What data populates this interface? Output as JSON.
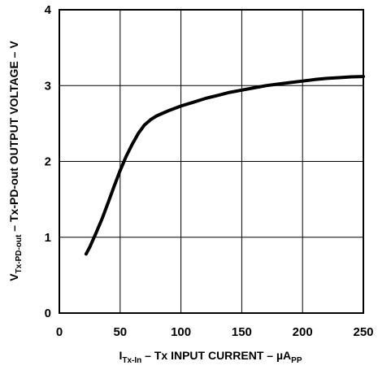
{
  "chart_data": {
    "type": "line",
    "x_label": {
      "main": "I",
      "sub": "Tx-In",
      "rest": " – Tx INPUT CURRENT – µA",
      "sub2": "PP"
    },
    "y_label": {
      "main": "V",
      "sub": "Tx-PD-out",
      "rest": " – Tx-PD-out OUTPUT VOLTAGE – V"
    },
    "xlim": [
      0,
      250
    ],
    "ylim": [
      0,
      4
    ],
    "x_ticks": [
      "0",
      "50",
      "100",
      "150",
      "200",
      "250"
    ],
    "y_ticks": [
      "0",
      "1",
      "2",
      "3",
      "4"
    ],
    "grid": true,
    "series": [
      {
        "x": [
          22,
          25,
          30,
          35,
          40,
          45,
          50,
          55,
          60,
          65,
          70,
          75,
          80,
          90,
          100,
          110,
          120,
          130,
          140,
          150,
          160,
          170,
          180,
          190,
          200,
          210,
          220,
          230,
          240,
          250
        ],
        "y": [
          0.78,
          0.87,
          1.05,
          1.24,
          1.45,
          1.67,
          1.88,
          2.07,
          2.23,
          2.37,
          2.48,
          2.55,
          2.6,
          2.67,
          2.73,
          2.78,
          2.83,
          2.87,
          2.91,
          2.94,
          2.97,
          3.0,
          3.02,
          3.04,
          3.06,
          3.08,
          3.095,
          3.105,
          3.115,
          3.12
        ]
      }
    ],
    "line_color": "#000000"
  }
}
